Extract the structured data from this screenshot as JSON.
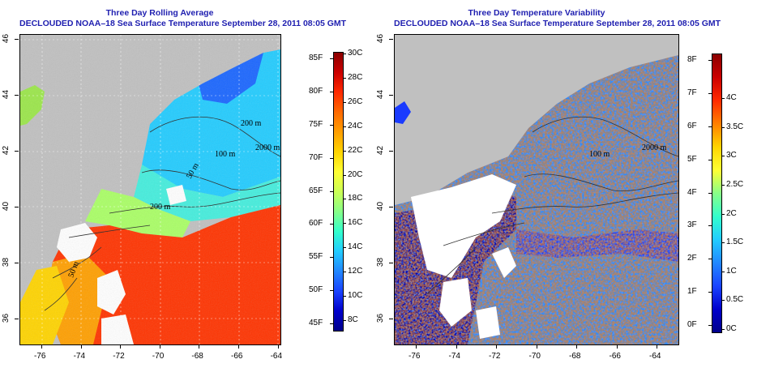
{
  "left_panel": {
    "title_line1": "Three Day Rolling Average",
    "title_line2": "DECLOUDED NOAA–18 Sea Surface Temperature September 28, 2011 08:05 GMT",
    "colorbar": {
      "fahrenheit": [
        "85F",
        "80F",
        "75F",
        "70F",
        "65F",
        "60F",
        "55F",
        "50F",
        "45F"
      ],
      "celsius": [
        "30C",
        "28C",
        "26C",
        "24C",
        "22C",
        "20C",
        "18C",
        "16C",
        "14C",
        "12C",
        "10C",
        "8C"
      ],
      "gradient": [
        "#8b0000",
        "#cc0000",
        "#ff2a00",
        "#ff6a00",
        "#ff9f00",
        "#ffd400",
        "#ffff33",
        "#ccff55",
        "#88ff88",
        "#33ffcc",
        "#22ccff",
        "#2288ff",
        "#1a44ff",
        "#0000cc",
        "#00008b"
      ]
    },
    "contour_labels": [
      "200 m",
      "2000 m",
      "100 m",
      "50 m",
      "200 m",
      "50 m"
    ]
  },
  "right_panel": {
    "title_line1": "Three Day Temperature Variability",
    "title_line2": "DECLOUDED NOAA–18 Sea Surface Temperature September 28, 2011 08:05 GMT",
    "colorbar": {
      "fahrenheit": [
        "8F",
        "7F",
        "6F",
        "5F",
        "4F",
        "3F",
        "2F",
        "1F",
        "0F"
      ],
      "celsius": [
        "4C",
        "3.5C",
        "3C",
        "2.5C",
        "2C",
        "1.5C",
        "1C",
        "0.5C",
        "0C"
      ],
      "gradient": [
        "#8b0000",
        "#cc0000",
        "#ff2a00",
        "#ff7f00",
        "#ffd400",
        "#ffff33",
        "#88ff88",
        "#33ffcc",
        "#22ccff",
        "#2288ff",
        "#1a44ff",
        "#0000cc",
        "#00008b"
      ]
    },
    "contour_labels": [
      "100 m",
      "2000 m"
    ]
  },
  "axes": {
    "x_ticks": [
      "-76",
      "-74",
      "-72",
      "-70",
      "-68",
      "-66",
      "-64"
    ],
    "y_ticks": [
      "46",
      "44",
      "42",
      "40",
      "38",
      "36"
    ]
  }
}
